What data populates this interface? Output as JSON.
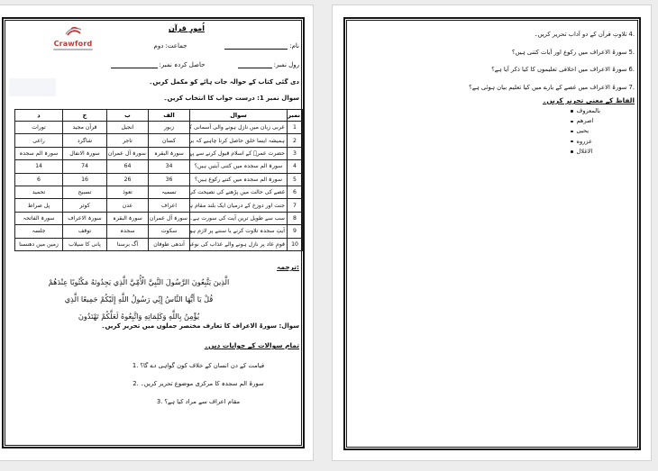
{
  "background": "#ededed",
  "logo": {
    "name": "Crawford",
    "color": "#c13832"
  },
  "left_page": {
    "title": "اُمورِ قرآن",
    "header": {
      "name_label": "نام:",
      "class_label": "جماعت: دوم",
      "roll_label": "رول نمبر:",
      "marks_label": "حاصل کردہ نمبر:"
    },
    "instruction1": "دی گئی کتاب کے حوالہ جات ہائے کو مکمل کریں۔",
    "instruction2": "سوال نمبر 1: درست جواب کا انتخاب کریں۔",
    "mcq_table": {
      "headers": {
        "num": "نمبر",
        "question": "سوال",
        "a": "الف",
        "b": "ب",
        "c": "ج",
        "d": "د"
      },
      "rows": [
        {
          "num": "1",
          "q": "عربی زبان میں نازل ہونے والی آسمانی کتاب ہے۔",
          "a": "زبور",
          "b": "انجیل",
          "c": "قرآن مجید",
          "d": "تورات"
        },
        {
          "num": "2",
          "q": "ہمیشہ ایسا خلق حاصل کرنا چاہیے کہ برائی کا بدلہ بھی اچھائی کے ساتھ دے۔",
          "a": "کسان",
          "b": "تاجر",
          "c": "شاگرد",
          "d": "راعی"
        },
        {
          "num": "3",
          "q": "حضرت عمرؓ کے اسلام قبول کرنے سے پہلے نازل ہوچکی۔",
          "a": "سورۃ البقرہ",
          "b": "سورۃ آل عمران",
          "c": "سورۃ الانفال",
          "d": "سورۃ الم سجدہ"
        },
        {
          "num": "4",
          "q": "سورۃ الم سجدہ میں کتنی آیتیں ہیں؟",
          "a": "34",
          "b": "64",
          "c": "74",
          "d": "14"
        },
        {
          "num": "5",
          "q": "سورۃ الم سجدہ میں کتنے رکوع ہیں؟",
          "a": "36",
          "b": "26",
          "c": "16",
          "d": "6"
        },
        {
          "num": "6",
          "q": "غصے کی حالت میں پڑھنے کی نصیحت کی گئی ہے",
          "a": "تسمیہ",
          "b": "تعوذ",
          "c": "تسبیح",
          "d": "تحمید"
        },
        {
          "num": "7",
          "q": "جنت اور دوزخ کے درمیان ایک بلند مقام ہے",
          "a": "اعراف",
          "b": "عدن",
          "c": "کوثر",
          "d": "پل صراط"
        },
        {
          "num": "8",
          "q": "سب سے طویل ترین آیت کی سورت ہے۔",
          "a": "سورۃ آل عمران",
          "b": "سورۃ البقرہ",
          "c": "سورۃ الاعراف",
          "d": "سورۃ الفاتحہ"
        },
        {
          "num": "9",
          "q": "آیتِ سجدہ تلاوت کرنے یا سننے پر لازم ہوتا ہے۔",
          "a": "سکوت",
          "b": "سجدہ",
          "c": "توقف",
          "d": "جلسہ"
        },
        {
          "num": "10",
          "q": "قومِ عاد پر نازل ہونے والے عذاب کی نوعیت کیا تھی۔",
          "a": "آندھی طوفان",
          "b": "آگ برسنا",
          "c": "پانی کا سیلاب",
          "d": "زمین میں دھنسنا"
        }
      ]
    },
    "translation_heading": "ترجمہ:",
    "arabic_lines": [
      "الَّذِينَ يَتَّبِعُونَ الرَّسُولَ النَّبِيَّ الْأُمِّيَّ الَّذِي يَجِدُونَهُ مَكْتُوبًا عِنْدَهُمْ",
      "قُلْ يَا أَيُّهَا النَّاسُ إِنِّي رَسُولُ اللَّهِ إِلَيْكُمْ جَمِيعًا الَّذِي",
      "يُؤْمِنُ بِاللَّهِ وَكَلِمَاتِهِ وَاتَّبِعُوهُ لَعَلَّكُمْ تَهْتَدُونَ"
    ],
    "intro_question": "سوال: سورۃ الاعراف کا تعارف مختصر جملوں میں تحریر کریں۔",
    "answers_heading": "تمام سوالات کے جوابات دیں۔",
    "questions": [
      {
        "num": "1",
        "text": "قیامت کے دن انسان کے خلاف کون گواہی دے گا؟"
      },
      {
        "num": "2",
        "text": "سورۃ الم سجدہ کا مرکزی موضوع تحریر کریں۔"
      },
      {
        "num": "3",
        "text": "مقام اعراف سے مراد کیا ہے؟"
      }
    ]
  },
  "right_page": {
    "questions": [
      {
        "num": "4",
        "text": "تلاوتِ قرآن کے دو آداب تحریر کریں۔"
      },
      {
        "num": "5",
        "text": "سورۃ الاعراف میں رکوع اور آیات کتنی ہیں؟"
      },
      {
        "num": "6",
        "text": "سورۃ الاعراف میں اخلاقی تعلیموں کا کیا ذکر آیا ہے؟"
      },
      {
        "num": "7",
        "text": "سورۃ الاعراف میں غصے کے بارے میں کیا تعلیم بیان ہوئی ہے؟"
      }
    ],
    "meanings_heading": "الفاظ کے معنی تحریر کریں۔",
    "words": [
      "بالمعروف",
      "اصرهم",
      "یحیی",
      "عزروه",
      "الاغلال"
    ]
  }
}
